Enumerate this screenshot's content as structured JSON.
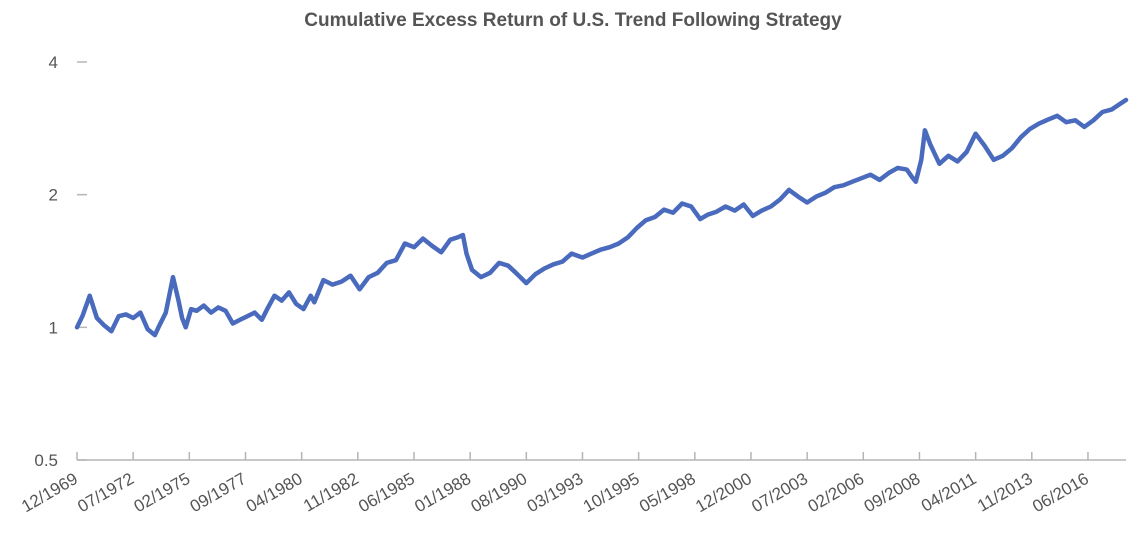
{
  "chart_data": {
    "type": "line",
    "title": "Cumulative Excess Return of U.S. Trend Following Strategy",
    "xlabel": "",
    "ylabel": "",
    "y_scale": "log",
    "ylim": [
      0.5,
      4
    ],
    "y_ticks": [
      "4",
      "2",
      "1",
      "0.5"
    ],
    "y_tick_values": [
      4,
      2,
      1,
      0.5
    ],
    "x_range": [
      "12/1969",
      "03/2018"
    ],
    "x_ticks": [
      "12/1969",
      "07/1972",
      "02/1975",
      "09/1977",
      "04/1980",
      "11/1982",
      "06/1985",
      "01/1988",
      "08/1990",
      "03/1993",
      "10/1995",
      "05/1998",
      "12/2000",
      "07/2003",
      "02/2006",
      "09/2008",
      "04/2011",
      "11/2013",
      "06/2016"
    ],
    "grid": false,
    "legend": "none",
    "series_color": "#4a6bbd",
    "series": [
      {
        "x": [
          "12/1969",
          "03/1970",
          "07/1970",
          "11/1970",
          "03/1971",
          "07/1971",
          "11/1971",
          "03/1972",
          "07/1972",
          "11/1972",
          "03/1973",
          "07/1973",
          "09/1973",
          "01/1974",
          "05/1974",
          "08/1974",
          "10/1974",
          "12/1974",
          "03/1975",
          "06/1975",
          "10/1975",
          "02/1976",
          "06/1976",
          "10/1976",
          "02/1977",
          "06/1977",
          "10/1977",
          "02/1978",
          "06/1978",
          "09/1978",
          "01/1979",
          "05/1979",
          "09/1979",
          "01/1980",
          "05/1980",
          "09/1980",
          "11/1980",
          "04/1981",
          "09/1981",
          "02/1982",
          "07/1982",
          "12/1982",
          "05/1983",
          "10/1983",
          "03/1984",
          "08/1984",
          "01/1985",
          "06/1985",
          "11/1985",
          "04/1986",
          "09/1986",
          "02/1987",
          "06/1987",
          "09/1987",
          "11/1987",
          "02/1988",
          "07/1988",
          "12/1988",
          "05/1989",
          "10/1989",
          "03/1990",
          "08/1990",
          "01/1991",
          "06/1991",
          "11/1991",
          "04/1992",
          "09/1992",
          "03/1993",
          "08/1993",
          "01/1994",
          "06/1994",
          "11/1994",
          "04/1995",
          "09/1995",
          "02/1996",
          "07/1996",
          "12/1996",
          "05/1997",
          "10/1997",
          "03/1998",
          "08/1998",
          "12/1998",
          "05/1999",
          "10/1999",
          "03/2000",
          "08/2000",
          "01/2001",
          "06/2001",
          "11/2001",
          "04/2002",
          "09/2002",
          "02/2003",
          "07/2003",
          "12/2003",
          "05/2004",
          "10/2004",
          "03/2005",
          "08/2005",
          "01/2006",
          "06/2006",
          "11/2006",
          "04/2007",
          "09/2007",
          "02/2008",
          "05/2008",
          "07/2008",
          "10/2008",
          "12/2008",
          "03/2009",
          "08/2009",
          "01/2010",
          "06/2010",
          "11/2010",
          "04/2011",
          "09/2011",
          "02/2012",
          "07/2012",
          "12/2012",
          "05/2013",
          "10/2013",
          "03/2014",
          "08/2014",
          "01/2015",
          "06/2015",
          "11/2015",
          "04/2016",
          "09/2016",
          "02/2017",
          "07/2017",
          "12/2017",
          "03/2018"
        ],
        "y": [
          1.0,
          1.06,
          1.18,
          1.05,
          1.01,
          0.98,
          1.06,
          1.07,
          1.05,
          1.08,
          0.99,
          0.96,
          1.0,
          1.08,
          1.3,
          1.15,
          1.05,
          1.0,
          1.1,
          1.09,
          1.12,
          1.08,
          1.11,
          1.09,
          1.02,
          1.04,
          1.06,
          1.08,
          1.04,
          1.1,
          1.18,
          1.15,
          1.2,
          1.13,
          1.1,
          1.18,
          1.14,
          1.28,
          1.25,
          1.27,
          1.31,
          1.22,
          1.3,
          1.33,
          1.4,
          1.42,
          1.55,
          1.52,
          1.59,
          1.53,
          1.48,
          1.58,
          1.6,
          1.62,
          1.47,
          1.35,
          1.3,
          1.33,
          1.4,
          1.38,
          1.32,
          1.26,
          1.32,
          1.36,
          1.39,
          1.41,
          1.47,
          1.44,
          1.47,
          1.5,
          1.52,
          1.55,
          1.6,
          1.68,
          1.75,
          1.78,
          1.85,
          1.82,
          1.91,
          1.88,
          1.76,
          1.8,
          1.83,
          1.88,
          1.84,
          1.9,
          1.79,
          1.84,
          1.88,
          1.95,
          2.05,
          1.98,
          1.92,
          1.98,
          2.02,
          2.08,
          2.1,
          2.14,
          2.18,
          2.22,
          2.16,
          2.24,
          2.3,
          2.28,
          2.19,
          2.14,
          2.4,
          2.8,
          2.6,
          2.35,
          2.45,
          2.38,
          2.5,
          2.75,
          2.58,
          2.4,
          2.45,
          2.55,
          2.7,
          2.82,
          2.9,
          2.96,
          3.02,
          2.92,
          2.95,
          2.85,
          2.95,
          3.08,
          3.12,
          3.22,
          3.28
        ]
      }
    ]
  }
}
